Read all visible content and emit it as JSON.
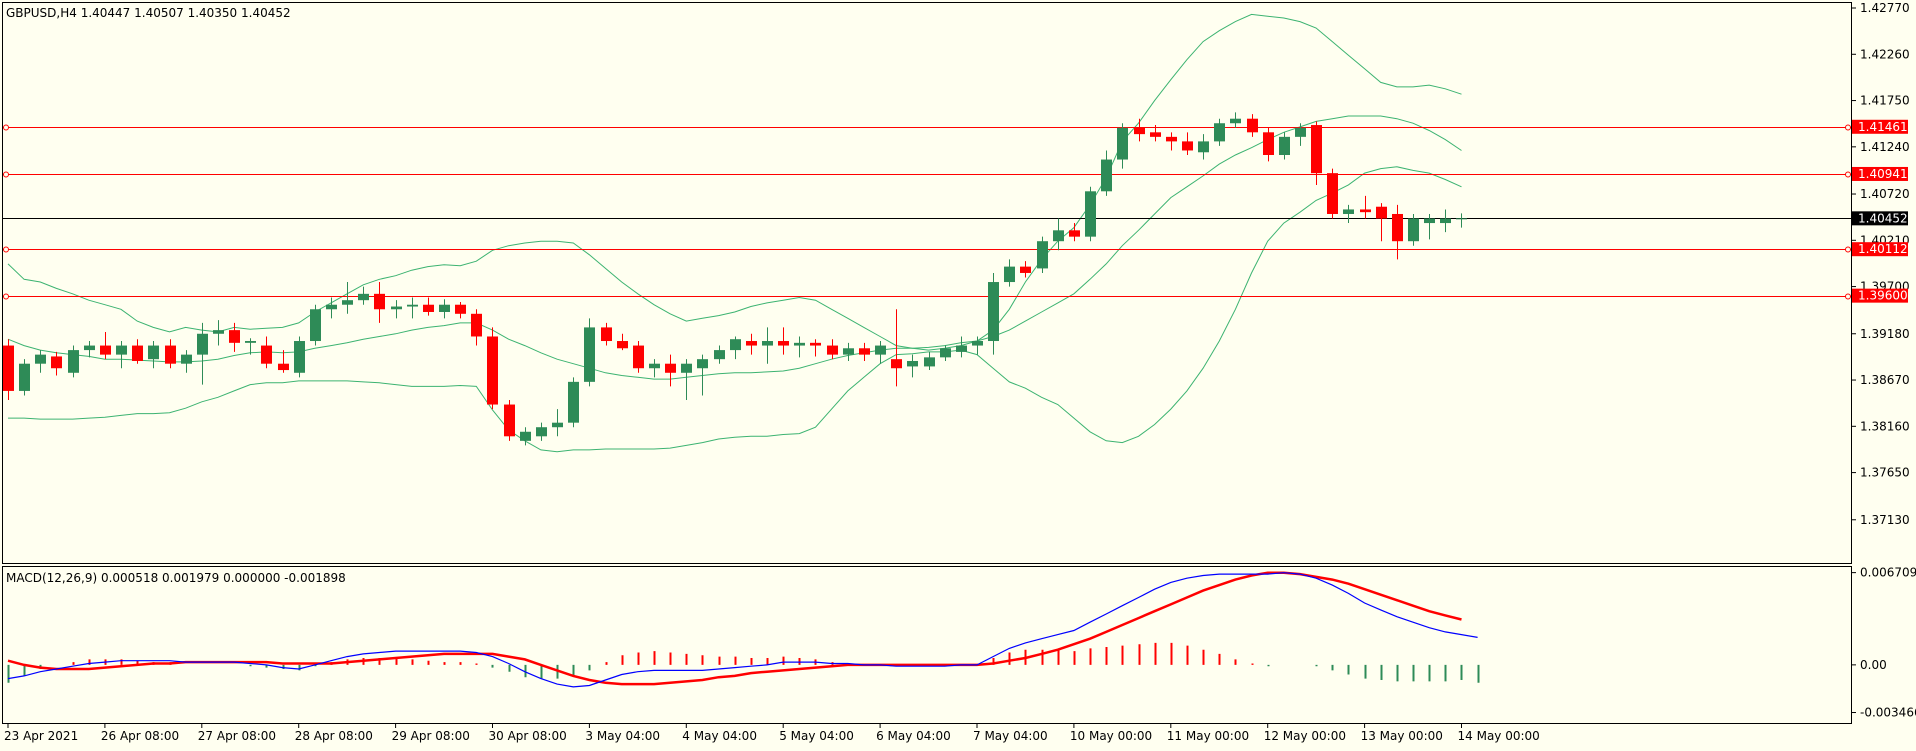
{
  "colors": {
    "background": "#fffff0",
    "bull_candle": "#2e8b57",
    "bear_candle": "#ff0000",
    "bollinger": "#3cb371",
    "level_line": "#ff0000",
    "price_line": "#000000",
    "macd_line": "#0000ff",
    "signal_line": "#ff0000"
  },
  "chart_data": [
    {
      "type": "candlestick",
      "title": "GBPUSD,H4  1.40447 1.40507 1.40350 1.40452",
      "ylim": [
        1.3683,
        1.4277
      ],
      "price_ticks": [
        "1.42770",
        "1.42260",
        "1.41750",
        "1.41240",
        "1.40720",
        "1.40210",
        "1.39700",
        "1.39180",
        "1.38670",
        "1.38160",
        "1.37650",
        "1.37130"
      ],
      "x_labels": [
        "23 Apr 2021",
        "26 Apr 08:00",
        "27 Apr 08:00",
        "28 Apr 08:00",
        "29 Apr 08:00",
        "30 Apr 08:00",
        "3 May 04:00",
        "4 May 04:00",
        "5 May 04:00",
        "6 May 04:00",
        "7 May 04:00",
        "10 May 00:00",
        "11 May 00:00",
        "12 May 00:00",
        "13 May 00:00",
        "14 May 00:00"
      ],
      "x_label_bars": [
        0,
        6,
        12,
        18,
        24,
        30,
        36,
        42,
        48,
        54,
        60,
        66,
        72,
        78,
        84,
        90
      ],
      "current_price": {
        "label": "1.40452",
        "value": 1.40452
      },
      "levels": [
        {
          "label": "1.41461",
          "value": 1.41461
        },
        {
          "label": "1.40941",
          "value": 1.40941
        },
        {
          "label": "1.40112",
          "value": 1.40112
        },
        {
          "label": "1.39600",
          "value": 1.396
        }
      ],
      "candles": [
        [
          1.3905,
          1.3912,
          1.3845,
          1.3855
        ],
        [
          1.3855,
          1.389,
          1.385,
          1.3885
        ],
        [
          1.3885,
          1.39,
          1.3875,
          1.3895
        ],
        [
          1.3893,
          1.3898,
          1.3872,
          1.388
        ],
        [
          1.3875,
          1.3905,
          1.387,
          1.39
        ],
        [
          1.39,
          1.391,
          1.3892,
          1.3905
        ],
        [
          1.3905,
          1.392,
          1.389,
          1.3895
        ],
        [
          1.3895,
          1.391,
          1.388,
          1.3905
        ],
        [
          1.3905,
          1.3912,
          1.3885,
          1.3888
        ],
        [
          1.389,
          1.391,
          1.388,
          1.3905
        ],
        [
          1.3905,
          1.3912,
          1.388,
          1.3885
        ],
        [
          1.3885,
          1.39,
          1.3875,
          1.3895
        ],
        [
          1.3895,
          1.393,
          1.3862,
          1.3918
        ],
        [
          1.3918,
          1.3933,
          1.3905,
          1.3922
        ],
        [
          1.3922,
          1.393,
          1.3898,
          1.3908
        ],
        [
          1.3908,
          1.3913,
          1.3895,
          1.391
        ],
        [
          1.3905,
          1.3915,
          1.388,
          1.3885
        ],
        [
          1.3885,
          1.39,
          1.3875,
          1.3878
        ],
        [
          1.3875,
          1.3915,
          1.387,
          1.391
        ],
        [
          1.391,
          1.395,
          1.3905,
          1.3945
        ],
        [
          1.3945,
          1.3958,
          1.3935,
          1.395
        ],
        [
          1.395,
          1.3975,
          1.394,
          1.3955
        ],
        [
          1.3955,
          1.397,
          1.395,
          1.3962
        ],
        [
          1.3962,
          1.3975,
          1.393,
          1.3945
        ],
        [
          1.3945,
          1.3955,
          1.3935,
          1.3948
        ],
        [
          1.3948,
          1.3958,
          1.3935,
          1.395
        ],
        [
          1.395,
          1.3958,
          1.3938,
          1.3942
        ],
        [
          1.3942,
          1.3956,
          1.3935,
          1.395
        ],
        [
          1.395,
          1.3953,
          1.3935,
          1.394
        ],
        [
          1.394,
          1.3945,
          1.3905,
          1.3915
        ],
        [
          1.3915,
          1.3925,
          1.3835,
          1.384
        ],
        [
          1.384,
          1.3845,
          1.38,
          1.3805
        ],
        [
          1.38,
          1.3815,
          1.3795,
          1.381
        ],
        [
          1.3805,
          1.382,
          1.38,
          1.3815
        ],
        [
          1.3815,
          1.3835,
          1.3805,
          1.382
        ],
        [
          1.382,
          1.387,
          1.3815,
          1.3865
        ],
        [
          1.3865,
          1.3935,
          1.386,
          1.3925
        ],
        [
          1.3925,
          1.393,
          1.3905,
          1.391
        ],
        [
          1.391,
          1.3918,
          1.39,
          1.3902
        ],
        [
          1.3905,
          1.391,
          1.3875,
          1.388
        ],
        [
          1.388,
          1.389,
          1.387,
          1.3885
        ],
        [
          1.3885,
          1.3895,
          1.386,
          1.3875
        ],
        [
          1.3875,
          1.389,
          1.3845,
          1.3885
        ],
        [
          1.388,
          1.3895,
          1.385,
          1.389
        ],
        [
          1.389,
          1.3905,
          1.3885,
          1.39
        ],
        [
          1.39,
          1.3915,
          1.389,
          1.3912
        ],
        [
          1.391,
          1.3918,
          1.3895,
          1.3905
        ],
        [
          1.3905,
          1.3925,
          1.3885,
          1.391
        ],
        [
          1.391,
          1.3925,
          1.3895,
          1.3905
        ],
        [
          1.3905,
          1.3915,
          1.3892,
          1.3908
        ],
        [
          1.3908,
          1.3912,
          1.3893,
          1.3905
        ],
        [
          1.3905,
          1.3912,
          1.389,
          1.3895
        ],
        [
          1.3895,
          1.3908,
          1.3888,
          1.3902
        ],
        [
          1.3902,
          1.3908,
          1.3888,
          1.3895
        ],
        [
          1.3895,
          1.391,
          1.3885,
          1.3905
        ],
        [
          1.389,
          1.3945,
          1.386,
          1.388
        ],
        [
          1.3882,
          1.3895,
          1.387,
          1.3888
        ],
        [
          1.3882,
          1.3898,
          1.3878,
          1.3892
        ],
        [
          1.3892,
          1.3905,
          1.3888,
          1.3902
        ],
        [
          1.3898,
          1.3915,
          1.3892,
          1.3905
        ],
        [
          1.3905,
          1.3915,
          1.3895,
          1.391
        ],
        [
          1.391,
          1.3985,
          1.3895,
          1.3975
        ],
        [
          1.3975,
          1.4,
          1.397,
          1.3992
        ],
        [
          1.3992,
          1.3998,
          1.398,
          1.3985
        ],
        [
          1.399,
          1.4025,
          1.3985,
          1.402
        ],
        [
          1.402,
          1.4045,
          1.401,
          1.4032
        ],
        [
          1.4032,
          1.404,
          1.402,
          1.4025
        ],
        [
          1.4025,
          1.408,
          1.402,
          1.4075
        ],
        [
          1.4075,
          1.412,
          1.407,
          1.411
        ],
        [
          1.411,
          1.415,
          1.41,
          1.4145
        ],
        [
          1.4145,
          1.4155,
          1.413,
          1.4138
        ],
        [
          1.414,
          1.4148,
          1.413,
          1.4135
        ],
        [
          1.4135,
          1.414,
          1.412,
          1.413
        ],
        [
          1.413,
          1.414,
          1.4115,
          1.412
        ],
        [
          1.4118,
          1.4138,
          1.411,
          1.413
        ],
        [
          1.413,
          1.4155,
          1.4125,
          1.415
        ],
        [
          1.415,
          1.4162,
          1.4145,
          1.4155
        ],
        [
          1.4155,
          1.416,
          1.4135,
          1.414
        ],
        [
          1.414,
          1.4145,
          1.4108,
          1.4115
        ],
        [
          1.4115,
          1.414,
          1.411,
          1.4135
        ],
        [
          1.4135,
          1.415,
          1.4125,
          1.4145
        ],
        [
          1.4148,
          1.4152,
          1.4082,
          1.4095
        ],
        [
          1.4095,
          1.41,
          1.4045,
          1.405
        ],
        [
          1.405,
          1.406,
          1.404,
          1.4055
        ],
        [
          1.4055,
          1.407,
          1.4045,
          1.4052
        ],
        [
          1.4058,
          1.4062,
          1.402,
          1.4045
        ],
        [
          1.405,
          1.406,
          1.4,
          1.402
        ],
        [
          1.402,
          1.405,
          1.4015,
          1.4045
        ],
        [
          1.404,
          1.405,
          1.4022,
          1.4045
        ],
        [
          1.404,
          1.4055,
          1.403,
          1.4045
        ],
        [
          1.40447,
          1.40507,
          1.4035,
          1.40452
        ]
      ],
      "bollinger": {
        "upper": [
          1.3995,
          1.3978,
          1.3975,
          1.3968,
          1.3962,
          1.3955,
          1.395,
          1.3945,
          1.3932,
          1.3925,
          1.392,
          1.3925,
          1.3922,
          1.392,
          1.3925,
          1.3923,
          1.3924,
          1.3925,
          1.393,
          1.3942,
          1.3952,
          1.3962,
          1.3972,
          1.3978,
          1.3982,
          1.3988,
          1.3992,
          1.3994,
          1.3993,
          1.3998,
          1.401,
          1.4015,
          1.4018,
          1.402,
          1.402,
          1.4018,
          1.4005,
          1.399,
          1.3975,
          1.3962,
          1.395,
          1.394,
          1.3932,
          1.3935,
          1.3938,
          1.3942,
          1.3948,
          1.3952,
          1.3955,
          1.3958,
          1.3955,
          1.3945,
          1.3935,
          1.3925,
          1.3915,
          1.3905,
          1.3902,
          1.39,
          1.3902,
          1.3905,
          1.391,
          1.3922,
          1.3945,
          1.3975,
          1.4,
          1.402,
          1.4035,
          1.406,
          1.409,
          1.413,
          1.415,
          1.4175,
          1.4198,
          1.422,
          1.424,
          1.4252,
          1.4262,
          1.427,
          1.4268,
          1.4266,
          1.4262,
          1.4255,
          1.424,
          1.4225,
          1.421,
          1.4195,
          1.419,
          1.419,
          1.4192,
          1.4188,
          1.4182
        ],
        "middle": [
          1.3912,
          1.3905,
          1.39,
          1.3897,
          1.3895,
          1.3893,
          1.389,
          1.389,
          1.3889,
          1.3888,
          1.3887,
          1.3887,
          1.3888,
          1.389,
          1.3894,
          1.3897,
          1.3898,
          1.3897,
          1.3898,
          1.3902,
          1.3905,
          1.3908,
          1.3912,
          1.3915,
          1.3918,
          1.3922,
          1.3925,
          1.3927,
          1.393,
          1.393,
          1.3922,
          1.3912,
          1.3905,
          1.3897,
          1.389,
          1.3885,
          1.388,
          1.3875,
          1.3872,
          1.387,
          1.3868,
          1.3868,
          1.387,
          1.3872,
          1.3874,
          1.3875,
          1.3875,
          1.3876,
          1.3877,
          1.388,
          1.3885,
          1.389,
          1.3894,
          1.3897,
          1.39,
          1.3902,
          1.3902,
          1.3903,
          1.3905,
          1.3908,
          1.391,
          1.3915,
          1.3922,
          1.3932,
          1.3942,
          1.3952,
          1.3962,
          1.3978,
          1.3995,
          1.4015,
          1.4032,
          1.405,
          1.4068,
          1.408,
          1.4092,
          1.4105,
          1.4115,
          1.4123,
          1.4132,
          1.414,
          1.4146,
          1.4152,
          1.4155,
          1.4158,
          1.4158,
          1.4158,
          1.4155,
          1.415,
          1.4142,
          1.4132,
          1.412
        ],
        "lower": [
          1.3825,
          1.3825,
          1.3824,
          1.3824,
          1.3824,
          1.3825,
          1.3826,
          1.3828,
          1.383,
          1.383,
          1.3831,
          1.3836,
          1.3843,
          1.3848,
          1.3855,
          1.3862,
          1.3864,
          1.3864,
          1.3866,
          1.3866,
          1.3866,
          1.3866,
          1.3865,
          1.3864,
          1.3862,
          1.386,
          1.386,
          1.386,
          1.3861,
          1.386,
          1.3834,
          1.3812,
          1.38,
          1.379,
          1.3788,
          1.379,
          1.379,
          1.3791,
          1.3791,
          1.3791,
          1.3791,
          1.3792,
          1.3795,
          1.3798,
          1.3802,
          1.3804,
          1.3805,
          1.3805,
          1.3807,
          1.3808,
          1.3815,
          1.3835,
          1.3855,
          1.387,
          1.3885,
          1.3895,
          1.3896,
          1.3898,
          1.3898,
          1.39,
          1.3895,
          1.388,
          1.3865,
          1.3858,
          1.3848,
          1.384,
          1.3825,
          1.381,
          1.38,
          1.3798,
          1.3805,
          1.3818,
          1.3835,
          1.3855,
          1.388,
          1.391,
          1.3945,
          1.3985,
          1.402,
          1.404,
          1.4052,
          1.4065,
          1.4073,
          1.4082,
          1.4095,
          1.41,
          1.4102,
          1.4098,
          1.4095,
          1.4088,
          1.408
        ]
      }
    },
    {
      "type": "macd",
      "title": "MACD(12,26,9) 0.000518 0.001979 0.000000 -0.001898",
      "ylim": [
        -0.00401,
        0.0069
      ],
      "ticks": [
        "0.006709",
        "0.00",
        "-0.003466"
      ],
      "macd": [
        -0.001,
        -0.0008,
        -0.0005,
        -0.0003,
        -0.0001,
        0.0001,
        0.0002,
        0.0003,
        0.0003,
        0.0003,
        0.0003,
        0.0002,
        0.0002,
        0.0002,
        0.0002,
        0.0001,
        0.0,
        -0.0002,
        -0.0003,
        0.0,
        0.0003,
        0.0006,
        0.0008,
        0.0009,
        0.001,
        0.001,
        0.001,
        0.001,
        0.001,
        0.0009,
        0.0006,
        0.0001,
        -0.0005,
        -0.001,
        -0.0014,
        -0.0016,
        -0.0015,
        -0.0011,
        -0.0007,
        -0.0005,
        -0.0004,
        -0.0004,
        -0.0004,
        -0.0004,
        -0.0003,
        -0.0002,
        -0.0001,
        0.0,
        0.0002,
        0.0002,
        0.0002,
        0.0001,
        0.0001,
        0.0,
        0.0,
        -0.0001,
        -0.0001,
        -0.0001,
        -0.0001,
        0.0,
        0.0,
        0.0006,
        0.0012,
        0.0016,
        0.0019,
        0.0022,
        0.0025,
        0.0031,
        0.0037,
        0.0043,
        0.0049,
        0.0055,
        0.006,
        0.0063,
        0.0065,
        0.0066,
        0.0066,
        0.0066,
        0.0066,
        0.0067,
        0.0066,
        0.0063,
        0.0058,
        0.0052,
        0.0045,
        0.004,
        0.0035,
        0.0031,
        0.0027,
        0.0024,
        0.0022,
        0.002
      ],
      "signal": [
        0.0003,
        0.0,
        -0.0002,
        -0.0003,
        -0.0003,
        -0.0003,
        -0.0002,
        -0.0001,
        0.0,
        0.0001,
        0.0001,
        0.0002,
        0.0002,
        0.0002,
        0.0002,
        0.0002,
        0.0002,
        0.0001,
        0.0001,
        0.0001,
        0.0001,
        0.0002,
        0.0003,
        0.0004,
        0.0005,
        0.0006,
        0.0007,
        0.0008,
        0.0008,
        0.0008,
        0.0008,
        0.0006,
        0.0004,
        0.0,
        -0.0004,
        -0.0008,
        -0.0011,
        -0.0013,
        -0.0014,
        -0.0014,
        -0.0014,
        -0.0013,
        -0.0012,
        -0.0011,
        -0.0009,
        -0.0008,
        -0.0006,
        -0.0005,
        -0.0004,
        -0.0003,
        -0.0002,
        -0.0001,
        0.0,
        0.0,
        0.0,
        0.0,
        0.0,
        0.0,
        0.0,
        0.0,
        0.0,
        0.0001,
        0.0003,
        0.0005,
        0.0008,
        0.0011,
        0.0015,
        0.0019,
        0.0024,
        0.0029,
        0.0034,
        0.0039,
        0.0044,
        0.0049,
        0.0054,
        0.0058,
        0.0062,
        0.0065,
        0.0067,
        0.0067,
        0.0066,
        0.0064,
        0.0062,
        0.0059,
        0.0055,
        0.0051,
        0.0047,
        0.0043,
        0.0039,
        0.0036,
        0.0033
      ],
      "histogram": [
        -0.0013,
        -0.0008,
        -0.0003,
        0.0,
        0.0002,
        0.0004,
        0.0004,
        0.0004,
        0.0003,
        0.0002,
        0.0002,
        0.0,
        0.0,
        0.0,
        0.0,
        -0.0001,
        -0.0002,
        -0.0003,
        -0.0004,
        -0.0001,
        0.0002,
        0.0004,
        0.0005,
        0.0005,
        0.0005,
        0.0004,
        0.0003,
        0.0002,
        0.0002,
        0.0001,
        -0.0002,
        -0.0005,
        -0.0009,
        -0.001,
        -0.001,
        -0.0008,
        -0.0004,
        0.0002,
        0.0007,
        0.0009,
        0.001,
        0.0009,
        0.0008,
        0.0007,
        0.0006,
        0.0006,
        0.0005,
        0.0005,
        0.0006,
        0.0005,
        0.0004,
        0.0002,
        0.0001,
        0.0,
        0.0,
        -0.0001,
        -0.0001,
        -0.0001,
        -0.0001,
        0.0,
        0.0,
        0.0005,
        0.0009,
        0.0011,
        0.0011,
        0.0011,
        0.001,
        0.0012,
        0.0013,
        0.0014,
        0.0015,
        0.0016,
        0.0016,
        0.0014,
        0.0011,
        0.0008,
        0.0004,
        0.0001,
        -0.0001,
        0.0,
        0.0,
        -0.0001,
        -0.0004,
        -0.0007,
        -0.001,
        -0.0011,
        -0.0012,
        -0.0012,
        -0.0012,
        -0.0012,
        -0.0011,
        -0.0013
      ]
    }
  ]
}
